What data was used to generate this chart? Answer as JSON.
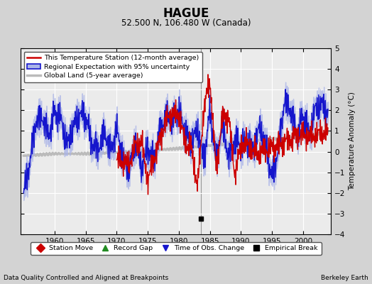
{
  "title": "HAGUE",
  "subtitle": "52.500 N, 106.480 W (Canada)",
  "ylabel": "Temperature Anomaly (°C)",
  "xlabel_left": "Data Quality Controlled and Aligned at Breakpoints",
  "xlabel_right": "Berkeley Earth",
  "ylim": [
    -4,
    5
  ],
  "xlim": [
    1954.5,
    2004.5
  ],
  "yticks": [
    -4,
    -3,
    -2,
    -1,
    0,
    1,
    2,
    3,
    4,
    5
  ],
  "xticks": [
    1960,
    1965,
    1970,
    1975,
    1980,
    1985,
    1990,
    1995,
    2000
  ],
  "bg_color": "#d3d3d3",
  "plot_bg_color": "#ebebeb",
  "legend_line_color": "#cc0000",
  "legend_line_lw": 1.5,
  "legend_band_color": "#aab4e8",
  "legend_band_edge": "#2222bb",
  "legend_gray_color": "#bbbbbb",
  "legend_gray_lw": 2.5,
  "regional_band_color": "#aab4e8",
  "regional_line_color": "#1515cc",
  "station_color": "#cc0000",
  "global_color": "#bbbbbb",
  "vertical_line_x": 1983.5,
  "empirical_break_x": 1983.5,
  "empirical_break_y": -3.25,
  "grid_color": "#ffffff",
  "legend_labels": [
    "This Temperature Station (12-month average)",
    "Regional Expectation with 95% uncertainty",
    "Global Land (5-year average)"
  ],
  "bottom_legend": [
    {
      "label": "Station Move",
      "color": "#cc0000",
      "marker": "D"
    },
    {
      "label": "Record Gap",
      "color": "#228B22",
      "marker": "^"
    },
    {
      "label": "Time of Obs. Change",
      "color": "#1515cc",
      "marker": "v"
    },
    {
      "label": "Empirical Break",
      "color": "#000000",
      "marker": "s"
    }
  ]
}
